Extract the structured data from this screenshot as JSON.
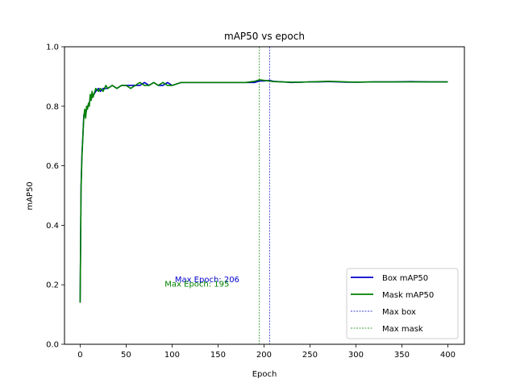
{
  "chart_data": {
    "type": "line",
    "title": "mAP50 vs epoch",
    "xlabel": "Epoch",
    "ylabel": "mAP50",
    "xlim": [
      -17,
      418
    ],
    "ylim": [
      0.0,
      1.0
    ],
    "xticks": [
      0,
      50,
      100,
      150,
      200,
      250,
      300,
      350,
      400
    ],
    "yticks": [
      0.0,
      0.2,
      0.4,
      0.6,
      0.8,
      1.0
    ],
    "ytick_labels": [
      "0.0",
      "0.2",
      "0.4",
      "0.6",
      "0.8",
      "1.0"
    ],
    "grid": false,
    "legend_position": "lower-right",
    "series": [
      {
        "name": "Box mAP50",
        "color": "#0000cc",
        "x": [
          0,
          1,
          2,
          3,
          4,
          5,
          6,
          7,
          8,
          9,
          10,
          11,
          12,
          13,
          14,
          15,
          17,
          20,
          22,
          25,
          28,
          30,
          35,
          40,
          45,
          50,
          55,
          60,
          65,
          70,
          75,
          80,
          85,
          90,
          95,
          100,
          110,
          120,
          130,
          140,
          150,
          160,
          170,
          180,
          190,
          195,
          200,
          206,
          210,
          220,
          230,
          240,
          250,
          260,
          270,
          280,
          290,
          300,
          320,
          340,
          360,
          380,
          400
        ],
        "values": [
          0.14,
          0.53,
          0.64,
          0.7,
          0.77,
          0.78,
          0.77,
          0.79,
          0.8,
          0.8,
          0.81,
          0.83,
          0.82,
          0.84,
          0.84,
          0.84,
          0.85,
          0.86,
          0.85,
          0.86,
          0.86,
          0.86,
          0.87,
          0.86,
          0.87,
          0.87,
          0.87,
          0.87,
          0.87,
          0.88,
          0.87,
          0.88,
          0.87,
          0.87,
          0.88,
          0.87,
          0.88,
          0.88,
          0.88,
          0.88,
          0.88,
          0.88,
          0.88,
          0.88,
          0.88,
          0.885,
          0.885,
          0.887,
          0.884,
          0.882,
          0.88,
          0.881,
          0.882,
          0.882,
          0.883,
          0.882,
          0.881,
          0.881,
          0.882,
          0.882,
          0.883,
          0.882,
          0.882
        ]
      },
      {
        "name": "Mask mAP50",
        "color": "#008000",
        "x": [
          0,
          1,
          2,
          3,
          4,
          5,
          6,
          7,
          8,
          9,
          10,
          11,
          12,
          13,
          14,
          15,
          17,
          20,
          22,
          25,
          28,
          30,
          35,
          40,
          45,
          50,
          55,
          60,
          65,
          70,
          75,
          80,
          85,
          90,
          95,
          100,
          110,
          120,
          130,
          140,
          150,
          160,
          170,
          180,
          190,
          195,
          200,
          206,
          210,
          220,
          230,
          240,
          250,
          260,
          270,
          280,
          290,
          300,
          320,
          340,
          360,
          380,
          400
        ],
        "values": [
          0.14,
          0.52,
          0.63,
          0.7,
          0.76,
          0.79,
          0.76,
          0.8,
          0.79,
          0.81,
          0.8,
          0.84,
          0.82,
          0.85,
          0.83,
          0.84,
          0.86,
          0.85,
          0.86,
          0.85,
          0.87,
          0.86,
          0.87,
          0.86,
          0.87,
          0.87,
          0.86,
          0.87,
          0.88,
          0.87,
          0.87,
          0.88,
          0.87,
          0.88,
          0.87,
          0.87,
          0.88,
          0.88,
          0.88,
          0.88,
          0.88,
          0.88,
          0.88,
          0.88,
          0.884,
          0.889,
          0.887,
          0.885,
          0.883,
          0.882,
          0.881,
          0.881,
          0.882,
          0.883,
          0.884,
          0.883,
          0.882,
          0.881,
          0.882,
          0.882,
          0.882,
          0.882,
          0.882
        ]
      }
    ],
    "vlines": [
      {
        "name": "Max box",
        "x": 206,
        "color": "#0000cc"
      },
      {
        "name": "Max mask",
        "x": 195,
        "color": "#008000"
      }
    ],
    "annotations": [
      {
        "text": "Max Epoch: 206",
        "x": 103,
        "y": 0.22,
        "color": "#0000cc"
      },
      {
        "text": "Max Epoch: 195",
        "x": 92,
        "y": 0.205,
        "color": "#008000"
      }
    ],
    "legend": [
      "Box mAP50",
      "Mask mAP50",
      "Max box",
      "Max mask"
    ]
  }
}
